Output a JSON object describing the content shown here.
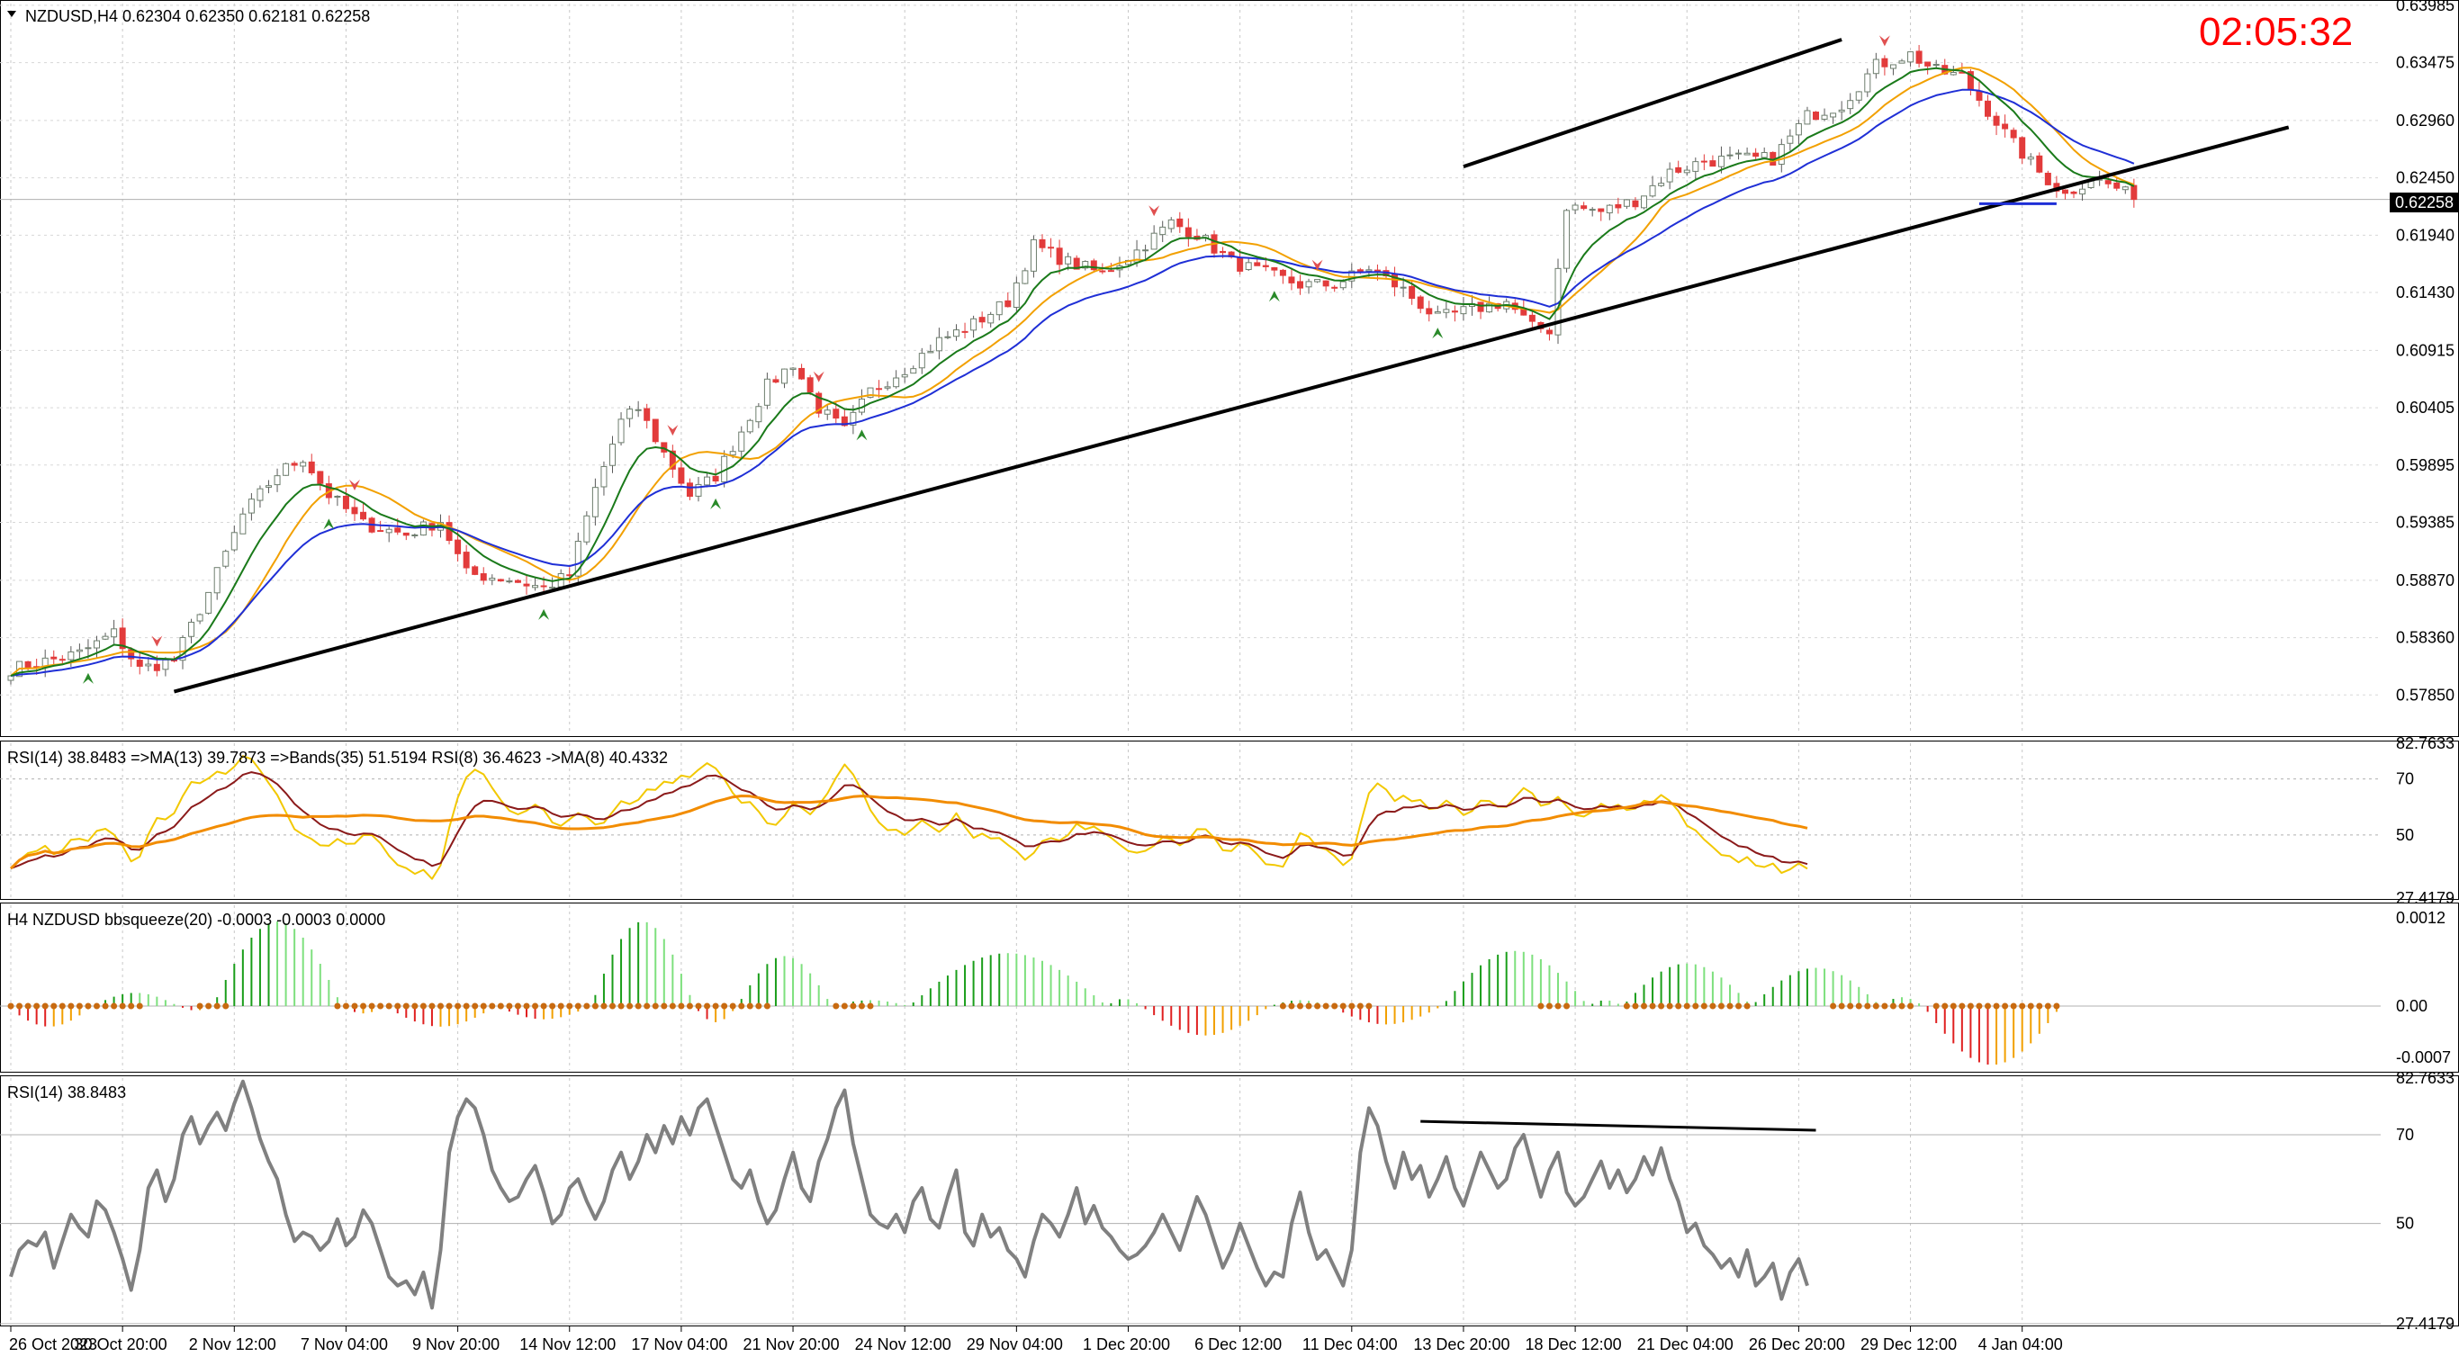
{
  "window": {
    "symbol_header": "NZDUSD,H4  0.62304 0.62350 0.62181 0.62258",
    "clock": "02:05:32",
    "current_price": "0.62258"
  },
  "colors": {
    "bull": "#1e9e1e",
    "bear": "#e23b3b",
    "ma_fast": "#1a7a1a",
    "ma_mid": "#f2a000",
    "ma_slow": "#1f2fd6",
    "trend": "#000000",
    "rsi_gray": "#808080",
    "rsi_fast": "#f2c800",
    "rsi_ma": "#8b1a1a",
    "rsi_slow": "#f28c00",
    "hist_green": "#1a9e1a",
    "hist_lightgreen": "#7ee07e",
    "hist_red": "#e02020",
    "hist_orange": "#f2a000",
    "dots": "#c86a10",
    "clock": "#ff0000",
    "support": "#1f2fd6"
  },
  "chart_data": [
    {
      "type": "candlestick",
      "title": "NZDUSD,H4  0.62304 0.62350 0.62181 0.62258",
      "xlabel": "",
      "ylabel": "",
      "ylim": [
        0.575,
        0.64
      ],
      "y_ticks": [
        "0.63985",
        "0.63475",
        "0.62960",
        "0.62450",
        "0.61940",
        "0.61430",
        "0.60915",
        "0.60405",
        "0.59895",
        "0.59385",
        "0.58870",
        "0.58360",
        "0.57850"
      ],
      "x_ticks": [
        "26 Oct 2023",
        "30 Oct 20:00",
        "2 Nov 12:00",
        "7 Nov 04:00",
        "9 Nov 20:00",
        "14 Nov 12:00",
        "17 Nov 04:00",
        "21 Nov 20:00",
        "24 Nov 12:00",
        "29 Nov 04:00",
        "1 Dec 20:00",
        "6 Dec 12:00",
        "11 Dec 04:00",
        "13 Dec 20:00",
        "18 Dec 12:00",
        "21 Dec 04:00",
        "26 Dec 20:00",
        "29 Dec 12:00",
        "4 Jan 04:00"
      ],
      "close_anchors": [
        [
          0,
          0.5808
        ],
        [
          8,
          0.5822
        ],
        [
          12,
          0.584
        ],
        [
          15,
          0.5808
        ],
        [
          19,
          0.5816
        ],
        [
          23,
          0.5876
        ],
        [
          27,
          0.5945
        ],
        [
          31,
          0.5982
        ],
        [
          34,
          0.5996
        ],
        [
          37,
          0.5963
        ],
        [
          41,
          0.5937
        ],
        [
          46,
          0.5928
        ],
        [
          50,
          0.594
        ],
        [
          53,
          0.5893
        ],
        [
          58,
          0.5888
        ],
        [
          62,
          0.588
        ],
        [
          65,
          0.5892
        ],
        [
          68,
          0.5968
        ],
        [
          71,
          0.6028
        ],
        [
          73,
          0.604
        ],
        [
          76,
          0.6
        ],
        [
          79,
          0.5963
        ],
        [
          82,
          0.598
        ],
        [
          85,
          0.602
        ],
        [
          88,
          0.606
        ],
        [
          91,
          0.608
        ],
        [
          94,
          0.604
        ],
        [
          97,
          0.602
        ],
        [
          100,
          0.6055
        ],
        [
          104,
          0.6075
        ],
        [
          108,
          0.61
        ],
        [
          112,
          0.6115
        ],
        [
          116,
          0.6135
        ],
        [
          119,
          0.6185
        ],
        [
          123,
          0.617
        ],
        [
          127,
          0.616
        ],
        [
          131,
          0.618
        ],
        [
          135,
          0.6205
        ],
        [
          138,
          0.6195
        ],
        [
          142,
          0.617
        ],
        [
          146,
          0.616
        ],
        [
          150,
          0.615
        ],
        [
          154,
          0.615
        ],
        [
          158,
          0.6165
        ],
        [
          162,
          0.6145
        ],
        [
          166,
          0.612
        ],
        [
          170,
          0.6128
        ],
        [
          174,
          0.6135
        ],
        [
          177,
          0.6112
        ],
        [
          179,
          0.611
        ],
        [
          181,
          0.622
        ],
        [
          185,
          0.6215
        ],
        [
          189,
          0.6225
        ],
        [
          193,
          0.625
        ],
        [
          197,
          0.626
        ],
        [
          201,
          0.6262
        ],
        [
          205,
          0.6262
        ],
        [
          209,
          0.63
        ],
        [
          213,
          0.631
        ],
        [
          217,
          0.6345
        ],
        [
          221,
          0.6355
        ],
        [
          224,
          0.634
        ],
        [
          227,
          0.6335
        ],
        [
          230,
          0.6305
        ],
        [
          233,
          0.6275
        ],
        [
          236,
          0.625
        ],
        [
          239,
          0.623
        ],
        [
          242,
          0.6245
        ],
        [
          245,
          0.6236
        ],
        [
          247,
          0.6226
        ]
      ],
      "series": [
        {
          "name": "",
          "description": "fast moving average"
        },
        {
          "name": "",
          "description": "mid moving average"
        },
        {
          "name": "",
          "description": "slow moving average"
        }
      ],
      "trendlines": [
        {
          "from": [
            19,
            0.5788
          ],
          "to": [
            265,
            0.629
          ]
        },
        {
          "from": [
            169,
            0.6255
          ],
          "to": [
            213,
            0.6368
          ]
        }
      ],
      "support_line": {
        "from": [
          229,
          0.6222
        ],
        "to": [
          238,
          0.6222
        ]
      },
      "last_price": 0.62258
    },
    {
      "type": "line",
      "title": "RSI(14) 38.8483  =>MA(13) 39.7873  =>Bands(35) 51.5194  RSI(8) 36.4623  ->MA(8) 40.4332",
      "ylim": [
        27.4179,
        82.7633
      ],
      "y_ticks": [
        "82.7633",
        "70",
        "50",
        "27.4179"
      ],
      "levels": [
        70,
        50
      ]
    },
    {
      "type": "bar",
      "title": "H4 NZDUSD bbsqueeze(20) -0.0003 -0.0003 0.0000",
      "ylim": [
        -0.0009,
        0.0014
      ],
      "y_ticks": [
        "0.0012",
        "0.00",
        "-0.0007"
      ],
      "humps": [
        [
          0,
          9,
          -0.00028
        ],
        [
          10,
          19,
          0.00018
        ],
        [
          20,
          23,
          -6e-05
        ],
        [
          24,
          38,
          0.00115
        ],
        [
          39,
          43,
          -0.0001
        ],
        [
          44,
          56,
          -0.00028
        ],
        [
          57,
          67,
          -0.00018
        ],
        [
          68,
          79,
          0.00115
        ],
        [
          80,
          84,
          -0.00022
        ],
        [
          85,
          95,
          0.00068
        ],
        [
          96,
          104,
          8e-05
        ],
        [
          105,
          127,
          0.00072
        ],
        [
          128,
          131,
          0.0001
        ],
        [
          132,
          146,
          -0.0004
        ],
        [
          147,
          153,
          8e-05
        ],
        [
          154,
          166,
          -0.00025
        ],
        [
          167,
          183,
          0.00075
        ],
        [
          184,
          187,
          8e-05
        ],
        [
          188,
          202,
          0.00058
        ],
        [
          203,
          217,
          0.00052
        ],
        [
          218,
          222,
          0.00012
        ],
        [
          223,
          238,
          -0.0008
        ]
      ]
    },
    {
      "type": "line",
      "title": "RSI(14) 38.8483",
      "ylim": [
        27.4179,
        82.7633
      ],
      "y_ticks": [
        "82.7633",
        "70",
        "50",
        "27.4179"
      ],
      "levels": [
        70,
        50,
        27.4179
      ],
      "values": [
        38,
        44,
        46,
        45,
        48,
        40,
        46,
        52,
        49,
        47,
        55,
        53,
        48,
        42,
        35,
        44,
        58,
        62,
        55,
        60,
        70,
        74,
        68,
        72,
        75,
        71,
        77,
        82,
        76,
        69,
        64,
        60,
        52,
        46,
        48,
        47,
        44,
        46,
        51,
        45,
        47,
        53,
        50,
        44,
        38,
        36,
        37,
        34,
        39,
        31,
        44,
        66,
        74,
        78,
        76,
        70,
        62,
        58,
        55,
        56,
        60,
        63,
        57,
        50,
        52,
        58,
        60,
        55,
        51,
        55,
        62,
        66,
        60,
        64,
        70,
        66,
        72,
        68,
        74,
        70,
        76,
        78,
        72,
        66,
        60,
        58,
        62,
        55,
        50,
        53,
        60,
        66,
        58,
        55,
        64,
        69,
        76,
        80,
        68,
        60,
        52,
        50,
        49,
        52,
        48,
        55,
        58,
        51,
        49,
        56,
        62,
        48,
        45,
        52,
        47,
        49,
        44,
        42,
        38,
        46,
        52,
        50,
        47,
        52,
        58,
        50,
        54,
        49,
        47,
        44,
        42,
        43,
        45,
        48,
        52,
        48,
        44,
        50,
        56,
        52,
        46,
        40,
        44,
        50,
        45,
        40,
        36,
        39,
        38,
        50,
        57,
        48,
        42,
        44,
        40,
        36,
        44,
        66,
        76,
        72,
        64,
        58,
        66,
        60,
        63,
        56,
        60,
        65,
        58,
        54,
        60,
        66,
        62,
        58,
        60,
        67,
        70,
        63,
        56,
        62,
        66,
        57,
        54,
        56,
        60,
        64,
        58,
        62,
        57,
        60,
        65,
        61,
        67,
        60,
        55,
        48,
        50,
        45,
        43,
        40,
        42,
        38,
        44,
        36,
        38,
        41,
        33,
        39,
        42,
        36
      ],
      "divergence_line": {
        "from": [
          164,
          73
        ],
        "to": [
          210,
          71
        ]
      }
    }
  ]
}
